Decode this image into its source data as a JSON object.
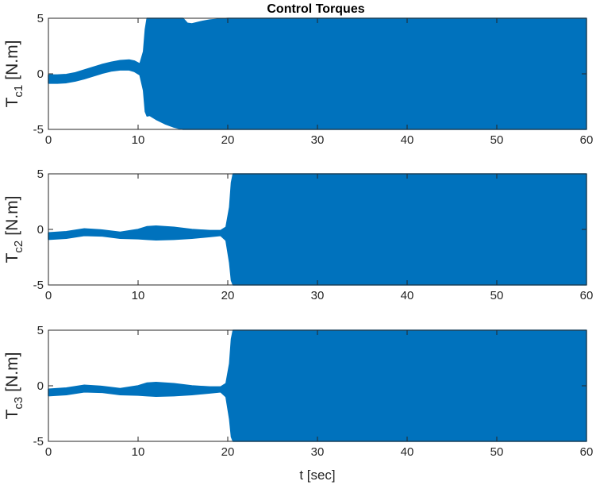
{
  "chart_data": [
    {
      "type": "area",
      "title": "Control Torques",
      "ylabel_main": "T",
      "ylabel_sub": "c1",
      "ylabel_unit": "[N.m]",
      "xlabel": "",
      "xlim": [
        0,
        60
      ],
      "ylim": [
        -5,
        5
      ],
      "xticks": [
        "0",
        "10",
        "20",
        "30",
        "40",
        "50",
        "60"
      ],
      "yticks": [
        "-5",
        "0",
        "5"
      ],
      "color": "#0072BD",
      "series": [
        {
          "x": [
            0,
            1,
            2,
            3,
            4,
            5,
            6,
            7,
            8,
            9,
            9.6,
            10.2,
            10.6,
            10.8,
            11,
            11.3,
            11.6,
            12,
            13,
            14,
            15,
            15.5,
            16,
            17,
            18,
            20,
            22,
            25,
            30,
            40,
            50,
            60
          ],
          "upper": [
            -0.1,
            -0.1,
            -0.05,
            0.1,
            0.35,
            0.6,
            0.85,
            1.05,
            1.2,
            1.25,
            1.15,
            0.9,
            2.0,
            4.0,
            5,
            5,
            5,
            5,
            5,
            5,
            5,
            4.55,
            4.5,
            4.7,
            4.85,
            5,
            5,
            5,
            5,
            5,
            5,
            5
          ],
          "lower": [
            -0.85,
            -0.85,
            -0.8,
            -0.65,
            -0.45,
            -0.2,
            0.05,
            0.25,
            0.35,
            0.35,
            0.2,
            -0.1,
            -1.5,
            -3.4,
            -3.8,
            -3.75,
            -3.9,
            -4.1,
            -4.5,
            -4.8,
            -5,
            -5,
            -5,
            -5,
            -5,
            -5,
            -5,
            -5,
            -5,
            -5,
            -5,
            -5
          ]
        }
      ]
    },
    {
      "type": "area",
      "title": "",
      "ylabel_main": "T",
      "ylabel_sub": "c2",
      "ylabel_unit": "[N.m]",
      "xlabel": "",
      "xlim": [
        0,
        60
      ],
      "ylim": [
        -5,
        5
      ],
      "xticks": [
        "0",
        "10",
        "20",
        "30",
        "40",
        "50",
        "60"
      ],
      "yticks": [
        "-5",
        "0",
        "5"
      ],
      "color": "#0072BD",
      "series": [
        {
          "x": [
            0,
            2,
            4,
            6,
            8,
            10,
            11,
            12,
            14,
            16,
            18,
            19.2,
            19.8,
            20.2,
            20.4,
            20.6,
            21,
            30,
            40,
            50,
            60
          ],
          "upper": [
            -0.3,
            -0.2,
            0.05,
            -0.05,
            -0.25,
            0.0,
            0.25,
            0.3,
            0.2,
            0.0,
            -0.1,
            -0.1,
            0.2,
            2.0,
            4.2,
            5,
            5,
            5,
            5,
            5,
            5
          ],
          "lower": [
            -0.9,
            -0.8,
            -0.55,
            -0.6,
            -0.8,
            -0.85,
            -0.9,
            -0.95,
            -0.9,
            -0.8,
            -0.65,
            -0.55,
            -1.0,
            -3.0,
            -4.6,
            -5,
            -5,
            -5,
            -5,
            -5,
            -5
          ]
        }
      ]
    },
    {
      "type": "area",
      "title": "",
      "ylabel_main": "T",
      "ylabel_sub": "c3",
      "ylabel_unit": "[N.m]",
      "xlabel": "t [sec]",
      "xlim": [
        0,
        60
      ],
      "ylim": [
        -5,
        5
      ],
      "xticks": [
        "0",
        "10",
        "20",
        "30",
        "40",
        "50",
        "60"
      ],
      "yticks": [
        "-5",
        "0",
        "5"
      ],
      "color": "#0072BD",
      "series": [
        {
          "x": [
            0,
            2,
            4,
            6,
            8,
            10,
            11,
            12,
            14,
            16,
            18,
            19.2,
            19.8,
            20.2,
            20.4,
            20.6,
            21,
            30,
            40,
            50,
            60
          ],
          "upper": [
            -0.3,
            -0.2,
            0.05,
            -0.05,
            -0.25,
            0.0,
            0.25,
            0.3,
            0.2,
            0.0,
            -0.1,
            -0.1,
            0.2,
            2.0,
            4.2,
            5,
            5,
            5,
            5,
            5,
            5
          ],
          "lower": [
            -0.9,
            -0.8,
            -0.55,
            -0.6,
            -0.8,
            -0.85,
            -0.9,
            -0.95,
            -0.9,
            -0.8,
            -0.65,
            -0.55,
            -1.0,
            -3.0,
            -4.6,
            -5,
            -5,
            -5,
            -5,
            -5,
            -5
          ]
        }
      ]
    }
  ]
}
